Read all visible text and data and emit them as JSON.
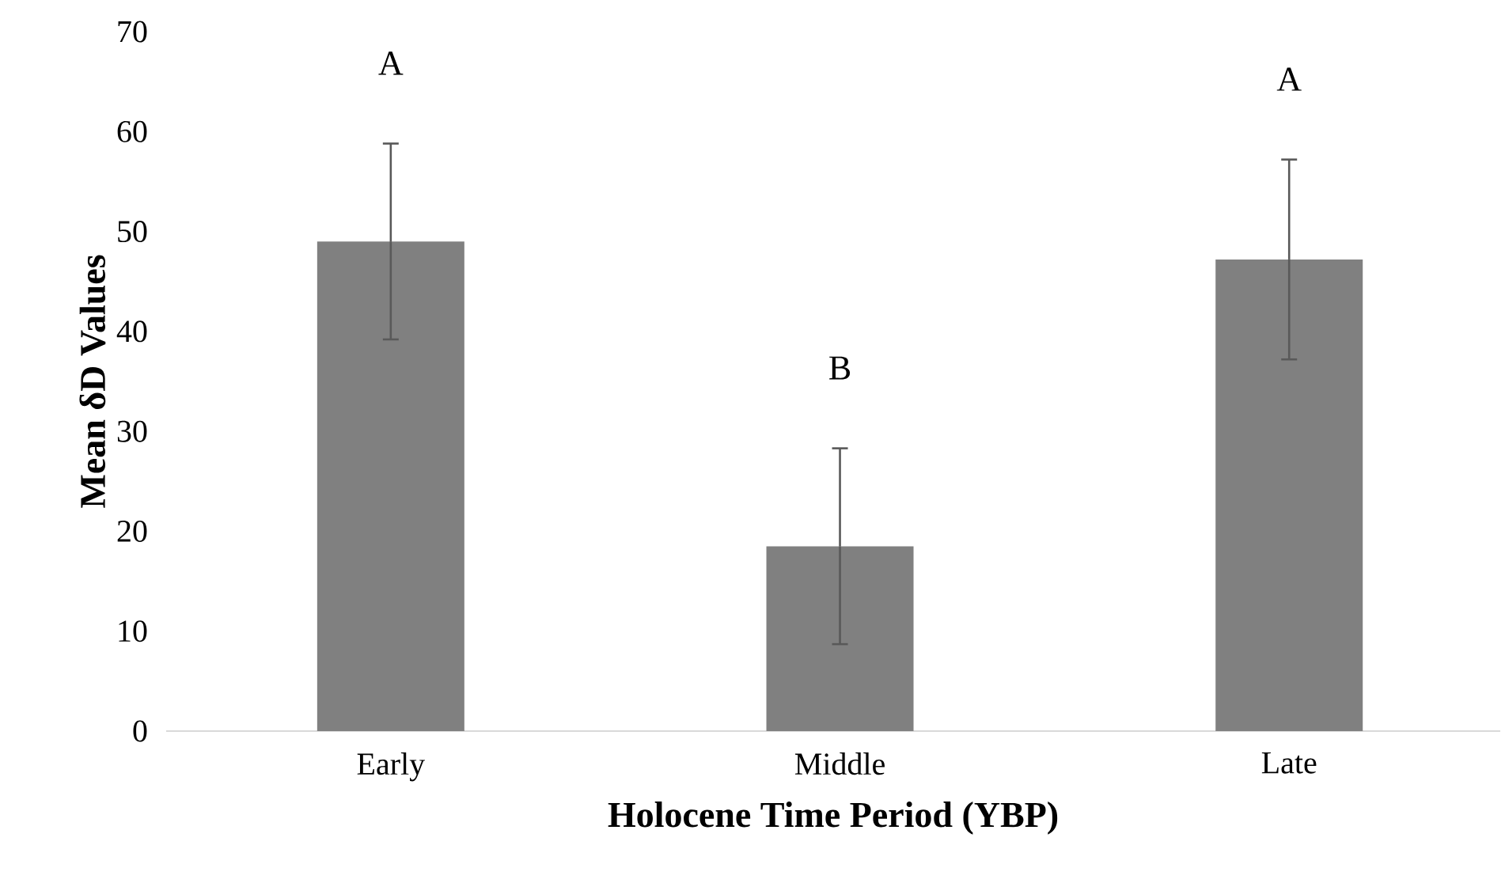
{
  "chart_data": {
    "type": "bar",
    "xlabel": "Holocene Time Period (YBP)",
    "ylabel": "Mean δD Values",
    "categories": [
      "Early",
      "Middle",
      "Late"
    ],
    "values": [
      49,
      18.5,
      47.2
    ],
    "errors": [
      9.8,
      9.8,
      10
    ],
    "color": "#808080",
    "ylim": [
      0,
      70
    ],
    "yticks": [
      0,
      10,
      20,
      30,
      40,
      50,
      60,
      70
    ],
    "grid": false,
    "annotations": [
      "A",
      "B",
      "A"
    ]
  }
}
